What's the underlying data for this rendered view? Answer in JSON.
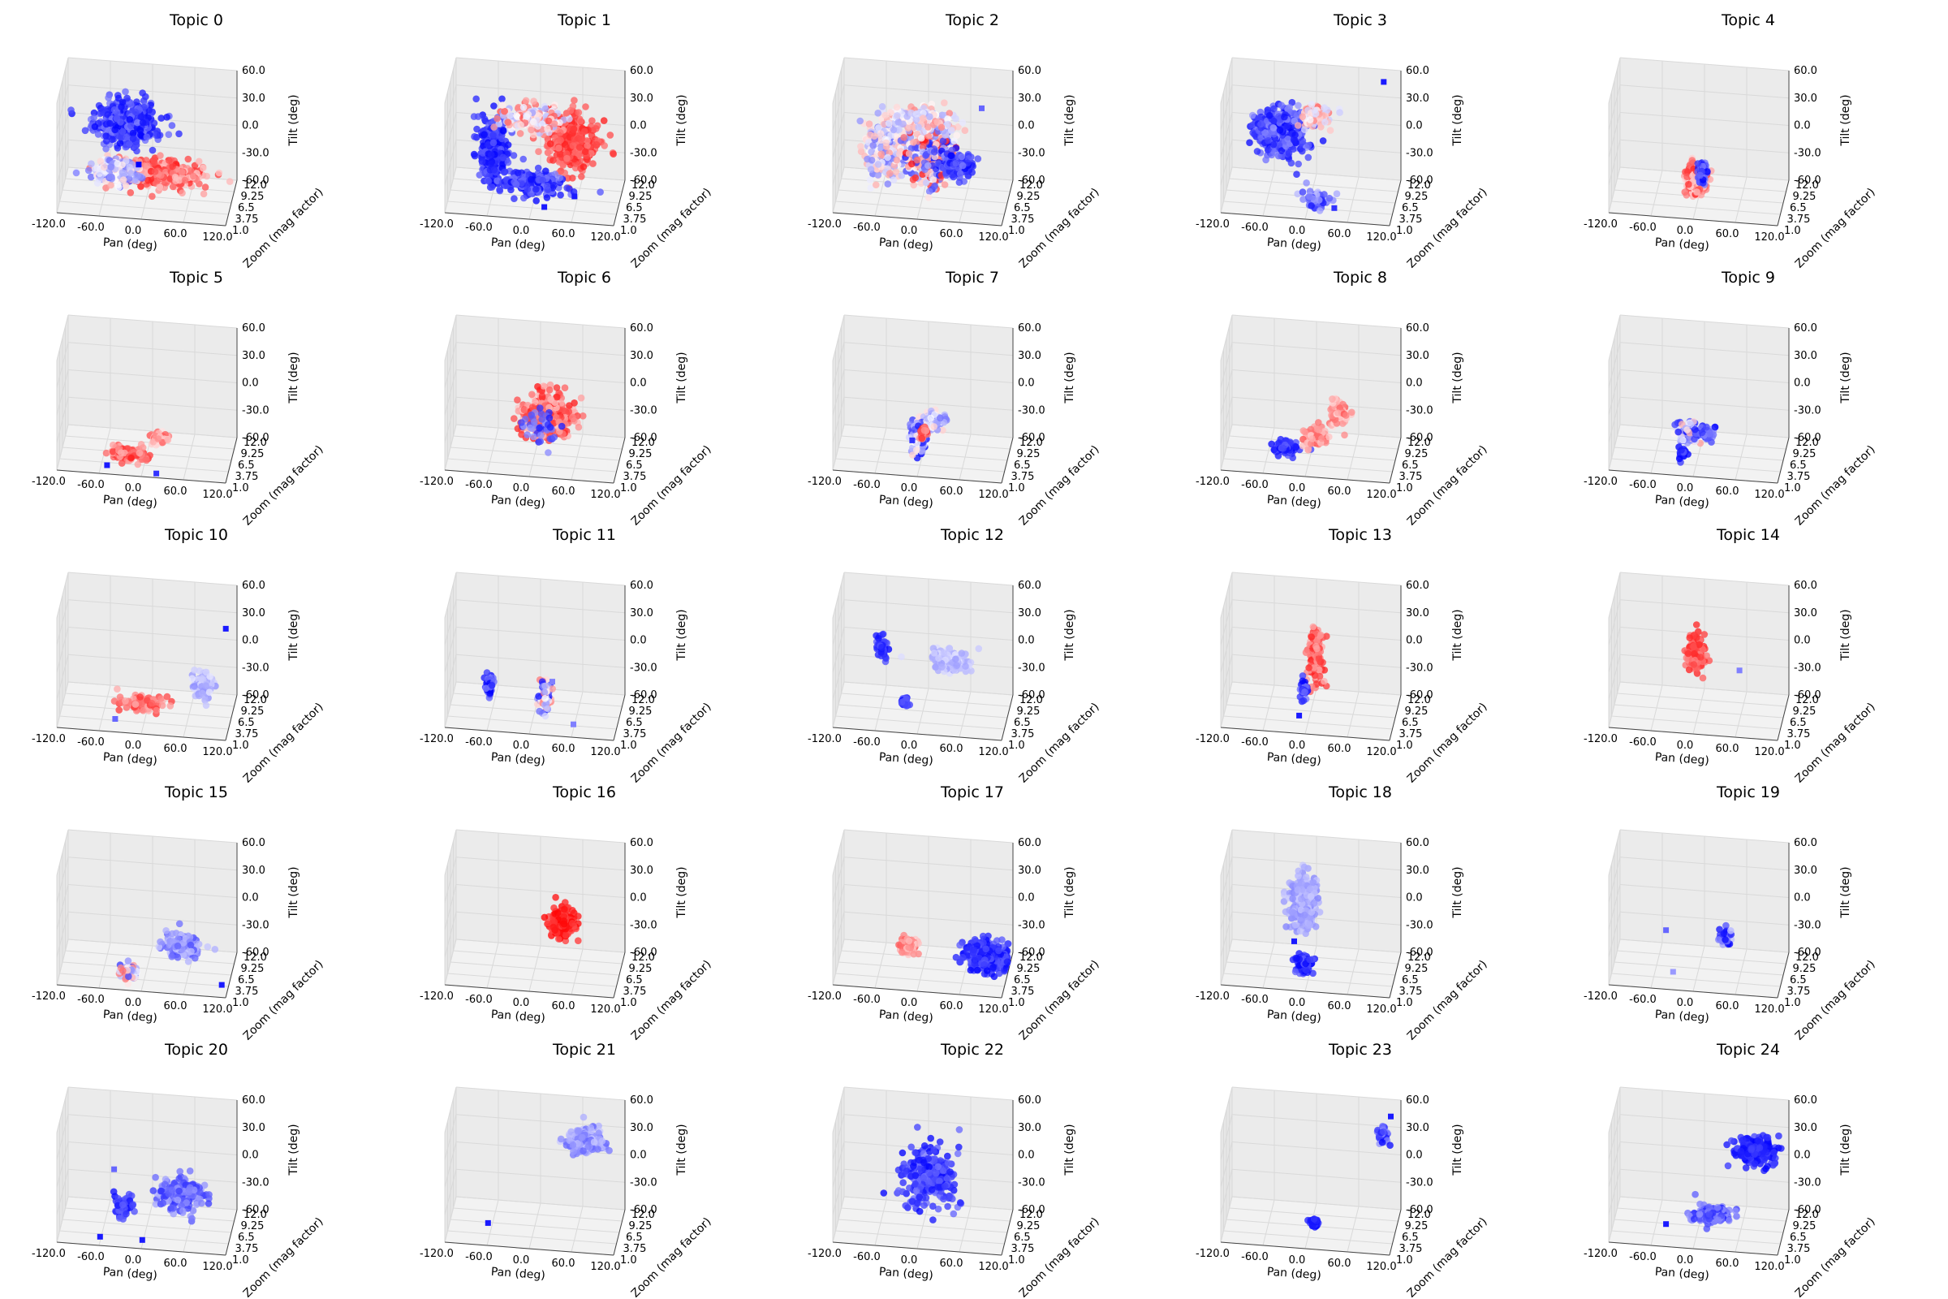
{
  "chart_data": {
    "type": "scatter",
    "subtype": "3d-scatter-small-multiples",
    "axes": {
      "xlabel": "Pan (deg)",
      "ylabel": "Zoom (mag factor)",
      "zlabel": "Tilt (deg)",
      "xticks": [
        "-120.0",
        "-60.0",
        "0.0",
        "60.0",
        "120.0"
      ],
      "yticks": [
        "1.0",
        "3.75",
        "6.5",
        "9.25",
        "12.0"
      ],
      "zticks": [
        "60.0",
        "30.0",
        "0.0",
        "-30.0",
        "-60.0"
      ],
      "xlim": [
        -120,
        120
      ],
      "ylim": [
        1,
        12
      ],
      "zlim": [
        -60,
        60
      ],
      "grid": true
    },
    "colormap": "bwr",
    "panels": [
      {
        "title": "Topic 0",
        "clusters": [
          {
            "pan": -25,
            "zoom": 4,
            "tilt": 30,
            "sp": 38,
            "sz": 1.4,
            "st": 18,
            "n": 420,
            "cmin": 0.0,
            "cmax": 0.25
          },
          {
            "pan": 20,
            "zoom": 4.5,
            "tilt": -25,
            "sp": 55,
            "sz": 1.6,
            "st": 10,
            "n": 360,
            "cmin": 0.6,
            "cmax": 0.95
          },
          {
            "pan": -40,
            "zoom": 3,
            "tilt": -20,
            "sp": 30,
            "sz": 1.2,
            "st": 10,
            "n": 180,
            "cmin": 0.2,
            "cmax": 0.6
          }
        ],
        "squares": [
          {
            "pan": -5,
            "zoom": 2,
            "tilt": -5,
            "c": 0.0
          }
        ]
      },
      {
        "title": "Topic 1",
        "clusters": [
          {
            "pan": -55,
            "zoom": 4,
            "tilt": 0,
            "sp": 18,
            "sz": 1.2,
            "st": 30,
            "n": 260,
            "cmin": 0.0,
            "cmax": 0.2
          },
          {
            "pan": 55,
            "zoom": 5,
            "tilt": 10,
            "sp": 30,
            "sz": 1.5,
            "st": 28,
            "n": 300,
            "cmin": 0.75,
            "cmax": 0.95
          },
          {
            "pan": 0,
            "zoom": 4.5,
            "tilt": 35,
            "sp": 35,
            "sz": 1.2,
            "st": 10,
            "n": 200,
            "cmin": 0.3,
            "cmax": 0.85
          },
          {
            "pan": 0,
            "zoom": 4,
            "tilt": -35,
            "sp": 38,
            "sz": 1.2,
            "st": 8,
            "n": 200,
            "cmin": 0.0,
            "cmax": 0.25
          }
        ],
        "squares": [
          {
            "pan": 60,
            "zoom": 4,
            "tilt": -45,
            "c": 0.05
          },
          {
            "pan": 20,
            "zoom": 2,
            "tilt": -50,
            "c": 0.05
          }
        ]
      },
      {
        "title": "Topic 2",
        "clusters": [
          {
            "pan": -50,
            "zoom": 4,
            "tilt": 0,
            "sp": 25,
            "sz": 1.3,
            "st": 25,
            "n": 250,
            "cmin": 0.2,
            "cmax": 0.7
          },
          {
            "pan": 15,
            "zoom": 4.5,
            "tilt": -5,
            "sp": 28,
            "sz": 1.3,
            "st": 28,
            "n": 280,
            "cmin": 0.0,
            "cmax": 1.0
          },
          {
            "pan": 50,
            "zoom": 7,
            "tilt": -25,
            "sp": 18,
            "sz": 1.2,
            "st": 10,
            "n": 150,
            "cmin": 0.0,
            "cmax": 0.25
          },
          {
            "pan": 0,
            "zoom": 5,
            "tilt": 30,
            "sp": 35,
            "sz": 1.2,
            "st": 10,
            "n": 160,
            "cmin": 0.3,
            "cmax": 0.75
          }
        ],
        "squares": [
          {
            "pan": 80,
            "zoom": 9,
            "tilt": 30,
            "c": 0.2
          }
        ]
      },
      {
        "title": "Topic 3",
        "clusters": [
          {
            "pan": -40,
            "zoom": 4,
            "tilt": 20,
            "sp": 30,
            "sz": 1.5,
            "st": 20,
            "n": 420,
            "cmin": 0.0,
            "cmax": 0.3
          },
          {
            "pan": 10,
            "zoom": 5,
            "tilt": 35,
            "sp": 18,
            "sz": 1.0,
            "st": 8,
            "n": 80,
            "cmin": 0.4,
            "cmax": 0.8
          },
          {
            "pan": 10,
            "zoom": 3,
            "tilt": -45,
            "sp": 20,
            "sz": 1.0,
            "st": 8,
            "n": 60,
            "cmin": 0.05,
            "cmax": 0.4
          }
        ],
        "squares": [
          {
            "pan": 100,
            "zoom": 9,
            "tilt": 60,
            "c": 0.05
          },
          {
            "pan": 40,
            "zoom": 2,
            "tilt": -50,
            "c": 0.1
          }
        ]
      },
      {
        "title": "Topic 4",
        "clusters": [
          {
            "pan": 0,
            "zoom": 4,
            "tilt": -30,
            "sp": 12,
            "sz": 1.0,
            "st": 12,
            "n": 280,
            "cmin": 0.55,
            "cmax": 0.95
          },
          {
            "pan": 8,
            "zoom": 4.5,
            "tilt": -25,
            "sp": 5,
            "sz": 0.7,
            "st": 10,
            "n": 60,
            "cmin": 0.0,
            "cmax": 0.3
          }
        ],
        "squares": []
      },
      {
        "title": "Topic 5",
        "clusters": [
          {
            "pan": -20,
            "zoom": 3,
            "tilt": -45,
            "sp": 22,
            "sz": 1.0,
            "st": 5,
            "n": 120,
            "cmin": 0.65,
            "cmax": 0.95
          },
          {
            "pan": 20,
            "zoom": 5,
            "tilt": -35,
            "sp": 10,
            "sz": 1.0,
            "st": 5,
            "n": 50,
            "cmin": 0.55,
            "cmax": 0.85
          }
        ],
        "squares": [
          {
            "pan": -50,
            "zoom": 2,
            "tilt": -55,
            "c": 0.05
          },
          {
            "pan": 20,
            "zoom": 2,
            "tilt": -60,
            "c": 0.1
          }
        ]
      },
      {
        "title": "Topic 6",
        "clusters": [
          {
            "pan": 20,
            "zoom": 5,
            "tilt": -10,
            "sp": 30,
            "sz": 1.6,
            "st": 20,
            "n": 320,
            "cmin": 0.6,
            "cmax": 0.95
          },
          {
            "pan": 10,
            "zoom": 4,
            "tilt": -20,
            "sp": 20,
            "sz": 1.0,
            "st": 15,
            "n": 40,
            "cmin": 0.05,
            "cmax": 0.3
          }
        ],
        "squares": []
      },
      {
        "title": "Topic 7",
        "clusters": [
          {
            "pan": 0,
            "zoom": 4,
            "tilt": -25,
            "sp": 10,
            "sz": 1.0,
            "st": 15,
            "n": 140,
            "cmin": 0.0,
            "cmax": 0.6
          },
          {
            "pan": 20,
            "zoom": 5,
            "tilt": -15,
            "sp": 12,
            "sz": 1.0,
            "st": 8,
            "n": 60,
            "cmin": 0.2,
            "cmax": 0.6
          },
          {
            "pan": 5,
            "zoom": 4,
            "tilt": -25,
            "sp": 5,
            "sz": 0.6,
            "st": 6,
            "n": 30,
            "cmin": 0.7,
            "cmax": 0.95
          }
        ],
        "squares": [
          {
            "pan": -10,
            "zoom": 3,
            "tilt": -30,
            "c": 0.1
          }
        ]
      },
      {
        "title": "Topic 8",
        "clusters": [
          {
            "pan": -30,
            "zoom": 3,
            "tilt": -40,
            "sp": 15,
            "sz": 1.0,
            "st": 5,
            "n": 80,
            "cmin": 0.0,
            "cmax": 0.2
          },
          {
            "pan": 10,
            "zoom": 4,
            "tilt": -30,
            "sp": 15,
            "sz": 1.0,
            "st": 8,
            "n": 70,
            "cmin": 0.6,
            "cmax": 0.85
          },
          {
            "pan": 40,
            "zoom": 6,
            "tilt": -10,
            "sp": 12,
            "sz": 1.2,
            "st": 10,
            "n": 80,
            "cmin": 0.55,
            "cmax": 0.85
          }
        ],
        "squares": []
      },
      {
        "title": "Topic 9",
        "clusters": [
          {
            "pan": -10,
            "zoom": 5,
            "tilt": -30,
            "sp": 15,
            "sz": 1.0,
            "st": 8,
            "n": 90,
            "cmin": 0.0,
            "cmax": 0.7
          },
          {
            "pan": 10,
            "zoom": 5,
            "tilt": -30,
            "sp": 10,
            "sz": 1.0,
            "st": 5,
            "n": 40,
            "cmin": 0.0,
            "cmax": 0.3
          },
          {
            "pan": -20,
            "zoom": 4,
            "tilt": -50,
            "sp": 5,
            "sz": 0.5,
            "st": 5,
            "n": 25,
            "cmin": 0.0,
            "cmax": 0.2
          }
        ],
        "squares": []
      },
      {
        "title": "Topic 10",
        "clusters": [
          {
            "pan": 0,
            "zoom": 4,
            "tilt": -40,
            "sp": 25,
            "sz": 1.0,
            "st": 5,
            "n": 90,
            "cmin": 0.65,
            "cmax": 0.9
          },
          {
            "pan": 80,
            "zoom": 6,
            "tilt": -25,
            "sp": 12,
            "sz": 1.2,
            "st": 12,
            "n": 100,
            "cmin": 0.28,
            "cmax": 0.45
          }
        ],
        "squares": [
          {
            "pan": 110,
            "zoom": 8,
            "tilt": 30,
            "c": 0.05
          },
          {
            "pan": -40,
            "zoom": 3,
            "tilt": -55,
            "c": 0.2
          }
        ]
      },
      {
        "title": "Topic 11",
        "clusters": [
          {
            "pan": -60,
            "zoom": 3,
            "tilt": -20,
            "sp": 5,
            "sz": 0.5,
            "st": 10,
            "n": 50,
            "cmin": 0.0,
            "cmax": 0.3
          },
          {
            "pan": 20,
            "zoom": 3,
            "tilt": -25,
            "sp": 7,
            "sz": 0.6,
            "st": 15,
            "n": 80,
            "cmin": 0.0,
            "cmax": 0.8
          }
        ],
        "squares": [
          {
            "pan": 30,
            "zoom": 3,
            "tilt": -10,
            "c": 0.25
          },
          {
            "pan": 60,
            "zoom": 3,
            "tilt": -55,
            "c": 0.25
          }
        ]
      },
      {
        "title": "Topic 12",
        "clusters": [
          {
            "pan": -55,
            "zoom": 4,
            "tilt": 20,
            "sp": 6,
            "sz": 0.6,
            "st": 10,
            "n": 50,
            "cmin": 0.0,
            "cmax": 0.2
          },
          {
            "pan": -20,
            "zoom": 3,
            "tilt": -35,
            "sp": 5,
            "sz": 0.5,
            "st": 4,
            "n": 30,
            "cmin": 0.0,
            "cmax": 0.2
          },
          {
            "pan": 40,
            "zoom": 7,
            "tilt": -5,
            "sp": 25,
            "sz": 1.0,
            "st": 8,
            "n": 120,
            "cmin": 0.3,
            "cmax": 0.45
          }
        ],
        "squares": []
      },
      {
        "title": "Topic 13",
        "clusters": [
          {
            "pan": 10,
            "zoom": 4,
            "tilt": 10,
            "sp": 10,
            "sz": 1.0,
            "st": 25,
            "n": 120,
            "cmin": 0.65,
            "cmax": 0.95
          },
          {
            "pan": -5,
            "zoom": 3,
            "tilt": -20,
            "sp": 5,
            "sz": 0.5,
            "st": 10,
            "n": 30,
            "cmin": 0.0,
            "cmax": 0.3
          }
        ],
        "squares": [
          {
            "pan": -10,
            "zoom": 2,
            "tilt": -45,
            "c": 0.05
          }
        ]
      },
      {
        "title": "Topic 14",
        "clusters": [
          {
            "pan": 0,
            "zoom": 4,
            "tilt": 15,
            "sp": 12,
            "sz": 1.0,
            "st": 18,
            "n": 110,
            "cmin": 0.7,
            "cmax": 0.95
          }
        ],
        "squares": [
          {
            "pan": 60,
            "zoom": 5,
            "tilt": -5,
            "c": 0.25
          }
        ]
      },
      {
        "title": "Topic 15",
        "clusters": [
          {
            "pan": -20,
            "zoom": 3,
            "tilt": -50,
            "sp": 10,
            "sz": 0.7,
            "st": 6,
            "n": 60,
            "cmin": 0.1,
            "cmax": 0.8
          },
          {
            "pan": 50,
            "zoom": 6,
            "tilt": -30,
            "sp": 22,
            "sz": 1.2,
            "st": 10,
            "n": 140,
            "cmin": 0.15,
            "cmax": 0.4
          }
        ],
        "squares": [
          {
            "pan": 110,
            "zoom": 4,
            "tilt": -60,
            "c": 0.05
          }
        ]
      },
      {
        "title": "Topic 16",
        "clusters": [
          {
            "pan": 40,
            "zoom": 6,
            "tilt": -5,
            "sp": 15,
            "sz": 1.2,
            "st": 12,
            "n": 220,
            "cmin": 0.85,
            "cmax": 1.0
          }
        ],
        "squares": []
      },
      {
        "title": "Topic 17",
        "clusters": [
          {
            "pan": -15,
            "zoom": 3,
            "tilt": -20,
            "sp": 10,
            "sz": 0.7,
            "st": 8,
            "n": 70,
            "cmin": 0.6,
            "cmax": 0.85
          },
          {
            "pan": 90,
            "zoom": 6,
            "tilt": -40,
            "sp": 25,
            "sz": 1.2,
            "st": 12,
            "n": 300,
            "cmin": 0.0,
            "cmax": 0.2
          }
        ],
        "squares": []
      },
      {
        "title": "Topic 18",
        "clusters": [
          {
            "pan": -10,
            "zoom": 5,
            "tilt": 20,
            "sp": 15,
            "sz": 1.0,
            "st": 25,
            "n": 260,
            "cmin": 0.25,
            "cmax": 0.4
          },
          {
            "pan": -5,
            "zoom": 3,
            "tilt": -40,
            "sp": 10,
            "sz": 0.7,
            "st": 8,
            "n": 90,
            "cmin": 0.0,
            "cmax": 0.2
          }
        ],
        "squares": [
          {
            "pan": -20,
            "zoom": 4,
            "tilt": -20,
            "c": 0.05
          }
        ]
      },
      {
        "title": "Topic 19",
        "clusters": [
          {
            "pan": 40,
            "zoom": 6,
            "tilt": -20,
            "sp": 10,
            "sz": 0.8,
            "st": 6,
            "n": 30,
            "cmin": 0.0,
            "cmax": 0.4
          }
        ],
        "squares": [
          {
            "pan": -40,
            "zoom": 2,
            "tilt": 0,
            "c": 0.2
          },
          {
            "pan": -30,
            "zoom": 2,
            "tilt": -45,
            "c": 0.3
          }
        ]
      },
      {
        "title": "Topic 20",
        "clusters": [
          {
            "pan": -30,
            "zoom": 3,
            "tilt": -25,
            "sp": 10,
            "sz": 0.7,
            "st": 10,
            "n": 60,
            "cmin": 0.0,
            "cmax": 0.2
          },
          {
            "pan": 50,
            "zoom": 6,
            "tilt": -20,
            "sp": 25,
            "sz": 1.2,
            "st": 15,
            "n": 170,
            "cmin": 0.1,
            "cmax": 0.35
          }
        ],
        "squares": [
          {
            "pan": -40,
            "zoom": 2,
            "tilt": 20,
            "c": 0.2
          },
          {
            "pan": -60,
            "zoom": 2,
            "tilt": -55,
            "c": 0.05
          },
          {
            "pan": 0,
            "zoom": 2,
            "tilt": -55,
            "c": 0.05
          }
        ]
      },
      {
        "title": "Topic 21",
        "clusters": [
          {
            "pan": 70,
            "zoom": 7,
            "tilt": 35,
            "sp": 20,
            "sz": 1.2,
            "st": 10,
            "n": 200,
            "cmin": 0.2,
            "cmax": 0.4
          }
        ],
        "squares": [
          {
            "pan": -60,
            "zoom": 2,
            "tilt": -40,
            "c": 0.05
          }
        ]
      },
      {
        "title": "Topic 22",
        "clusters": [
          {
            "pan": 10,
            "zoom": 5,
            "tilt": 0,
            "sp": 30,
            "sz": 1.5,
            "st": 25,
            "n": 320,
            "cmin": 0.0,
            "cmax": 0.25
          }
        ],
        "squares": []
      },
      {
        "title": "Topic 23",
        "clusters": [
          {
            "pan": 100,
            "zoom": 8,
            "tilt": 40,
            "sp": 8,
            "sz": 0.6,
            "st": 8,
            "n": 30,
            "cmin": 0.0,
            "cmax": 0.3
          },
          {
            "pan": 10,
            "zoom": 3,
            "tilt": -40,
            "sp": 5,
            "sz": 0.5,
            "st": 4,
            "n": 30,
            "cmin": 0.0,
            "cmax": 0.1
          }
        ],
        "squares": [
          {
            "pan": 110,
            "zoom": 9,
            "tilt": 55,
            "c": 0.05
          }
        ]
      },
      {
        "title": "Topic 24",
        "clusters": [
          {
            "pan": 80,
            "zoom": 8,
            "tilt": 20,
            "sp": 25,
            "sz": 1.2,
            "st": 12,
            "n": 220,
            "cmin": 0.0,
            "cmax": 0.15
          },
          {
            "pan": 20,
            "zoom": 4,
            "tilt": -35,
            "sp": 22,
            "sz": 1.0,
            "st": 6,
            "n": 140,
            "cmin": 0.05,
            "cmax": 0.3
          }
        ],
        "squares": [
          {
            "pan": -40,
            "zoom": 2,
            "tilt": -40,
            "c": 0.05
          }
        ]
      }
    ]
  }
}
